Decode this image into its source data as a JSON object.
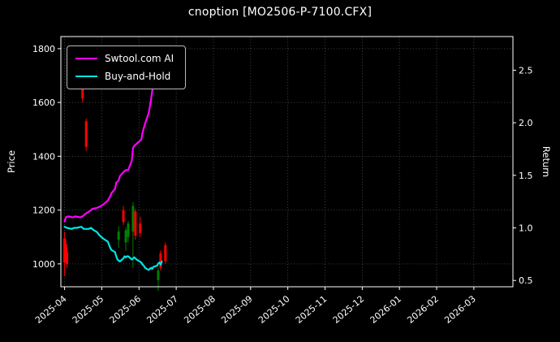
{
  "colors": {
    "background": "#000000",
    "text": "#ffffff",
    "grid": "#555555",
    "spine": "#ffffff"
  },
  "chart_data": {
    "type": "line",
    "title": "cnoption [MO2506-P-7100.CFX]",
    "xlabel": "",
    "ylabel": "Price",
    "y2label": "Return",
    "ylim": [
      915,
      1845
    ],
    "y2lim": [
      0.44,
      2.82
    ],
    "xlim_months": [
      -0.1,
      12.05
    ],
    "y_ticks": [
      1000,
      1200,
      1400,
      1600,
      1800
    ],
    "y2_ticks": [
      0.5,
      1.0,
      1.5,
      2.0,
      2.5
    ],
    "x_ticks": [
      "2025-04",
      "2025-05",
      "2025-06",
      "2025-07",
      "2025-08",
      "2025-09",
      "2025-10",
      "2025-11",
      "2025-12",
      "2026-01",
      "2026-02",
      "2026-03"
    ],
    "grid": true,
    "legend_position": "upper-left",
    "series": [
      {
        "name": "Swtool.com AI",
        "color": "#ff00ff",
        "axis": "return",
        "points": [
          [
            "2025-04-01",
            1.06
          ],
          [
            "2025-04-02",
            1.1
          ],
          [
            "2025-04-04",
            1.11
          ],
          [
            "2025-04-08",
            1.1
          ],
          [
            "2025-04-10",
            1.11
          ],
          [
            "2025-04-14",
            1.1
          ],
          [
            "2025-04-16",
            1.11
          ],
          [
            "2025-04-18",
            1.13
          ],
          [
            "2025-04-22",
            1.16
          ],
          [
            "2025-04-24",
            1.18
          ],
          [
            "2025-04-28",
            1.19
          ],
          [
            "2025-04-30",
            1.2
          ],
          [
            "2025-05-02",
            1.22
          ],
          [
            "2025-05-06",
            1.26
          ],
          [
            "2025-05-08",
            1.3
          ],
          [
            "2025-05-09",
            1.33
          ],
          [
            "2025-05-12",
            1.37
          ],
          [
            "2025-05-13",
            1.43
          ],
          [
            "2025-05-15",
            1.45
          ],
          [
            "2025-05-16",
            1.49
          ],
          [
            "2025-05-19",
            1.53
          ],
          [
            "2025-05-20",
            1.54
          ],
          [
            "2025-05-21",
            1.55
          ],
          [
            "2025-05-23",
            1.55
          ],
          [
            "2025-05-26",
            1.64
          ],
          [
            "2025-05-27",
            1.76
          ],
          [
            "2025-05-28",
            1.78
          ],
          [
            "2025-05-30",
            1.8
          ],
          [
            "2025-06-03",
            1.84
          ],
          [
            "2025-06-04",
            1.91
          ],
          [
            "2025-06-05",
            1.95
          ],
          [
            "2025-06-06",
            1.99
          ],
          [
            "2025-06-09",
            2.09
          ],
          [
            "2025-06-10",
            2.15
          ],
          [
            "2025-06-11",
            2.22
          ],
          [
            "2025-06-12",
            2.3
          ],
          [
            "2025-06-13",
            2.36
          ],
          [
            "2025-06-16",
            2.44
          ],
          [
            "2025-06-17",
            2.51
          ],
          [
            "2025-06-18",
            2.6
          ],
          [
            "2025-06-19",
            2.67
          ],
          [
            "2025-06-20",
            2.69
          ]
        ]
      },
      {
        "name": "Buy-and-Hold",
        "color": "#00e5e5",
        "axis": "return",
        "points": [
          [
            "2025-04-01",
            1.01
          ],
          [
            "2025-04-03",
            1.0
          ],
          [
            "2025-04-07",
            0.99
          ],
          [
            "2025-04-09",
            1.0
          ],
          [
            "2025-04-11",
            1.0
          ],
          [
            "2025-04-15",
            1.01
          ],
          [
            "2025-04-17",
            0.99
          ],
          [
            "2025-04-21",
            0.99
          ],
          [
            "2025-04-23",
            1.0
          ],
          [
            "2025-04-25",
            0.98
          ],
          [
            "2025-04-28",
            0.96
          ],
          [
            "2025-04-30",
            0.93
          ],
          [
            "2025-05-02",
            0.9
          ],
          [
            "2025-05-06",
            0.87
          ],
          [
            "2025-05-07",
            0.84
          ],
          [
            "2025-05-08",
            0.81
          ],
          [
            "2025-05-09",
            0.79
          ],
          [
            "2025-05-12",
            0.77
          ],
          [
            "2025-05-13",
            0.73
          ],
          [
            "2025-05-14",
            0.7
          ],
          [
            "2025-05-15",
            0.69
          ],
          [
            "2025-05-16",
            0.68
          ],
          [
            "2025-05-19",
            0.71
          ],
          [
            "2025-05-20",
            0.73
          ],
          [
            "2025-05-21",
            0.72
          ],
          [
            "2025-05-22",
            0.73
          ],
          [
            "2025-05-23",
            0.73
          ],
          [
            "2025-05-26",
            0.7
          ],
          [
            "2025-05-27",
            0.71
          ],
          [
            "2025-05-28",
            0.72
          ],
          [
            "2025-05-29",
            0.71
          ],
          [
            "2025-05-30",
            0.7
          ],
          [
            "2025-06-03",
            0.67
          ],
          [
            "2025-06-04",
            0.65
          ],
          [
            "2025-06-05",
            0.64
          ],
          [
            "2025-06-06",
            0.62
          ],
          [
            "2025-06-09",
            0.6
          ],
          [
            "2025-06-10",
            0.61
          ],
          [
            "2025-06-11",
            0.62
          ],
          [
            "2025-06-12",
            0.61
          ],
          [
            "2025-06-13",
            0.63
          ],
          [
            "2025-06-16",
            0.64
          ],
          [
            "2025-06-17",
            0.66
          ],
          [
            "2025-06-18",
            0.67
          ],
          [
            "2025-06-19",
            0.65
          ],
          [
            "2025-06-20",
            0.68
          ]
        ]
      }
    ],
    "candles": {
      "axis": "price",
      "up_color": "#008000",
      "down_color": "#ff0000",
      "ohlc": [
        [
          "2025-04-01",
          1095,
          1120,
          955,
          1005
        ],
        [
          "2025-04-02",
          1075,
          1090,
          1015,
          1030
        ],
        [
          "2025-04-03",
          1045,
          1060,
          985,
          1000
        ],
        [
          "2025-04-16",
          1690,
          1700,
          1600,
          1615
        ],
        [
          "2025-04-19",
          1530,
          1540,
          1420,
          1435
        ],
        [
          "2025-05-15",
          1090,
          1140,
          1060,
          1120
        ],
        [
          "2025-05-19",
          1200,
          1215,
          1145,
          1155
        ],
        [
          "2025-05-21",
          1080,
          1135,
          1050,
          1125
        ],
        [
          "2025-05-23",
          1100,
          1160,
          1080,
          1150
        ],
        [
          "2025-05-27",
          1120,
          1230,
          985,
          1215
        ],
        [
          "2025-05-29",
          1195,
          1205,
          1090,
          1105
        ],
        [
          "2025-06-02",
          1150,
          1175,
          1100,
          1115
        ],
        [
          "2025-06-17",
          940,
          985,
          900,
          975
        ],
        [
          "2025-06-19",
          1040,
          1050,
          975,
          985
        ],
        [
          "2025-06-23",
          1070,
          1080,
          1000,
          1010
        ]
      ]
    }
  }
}
